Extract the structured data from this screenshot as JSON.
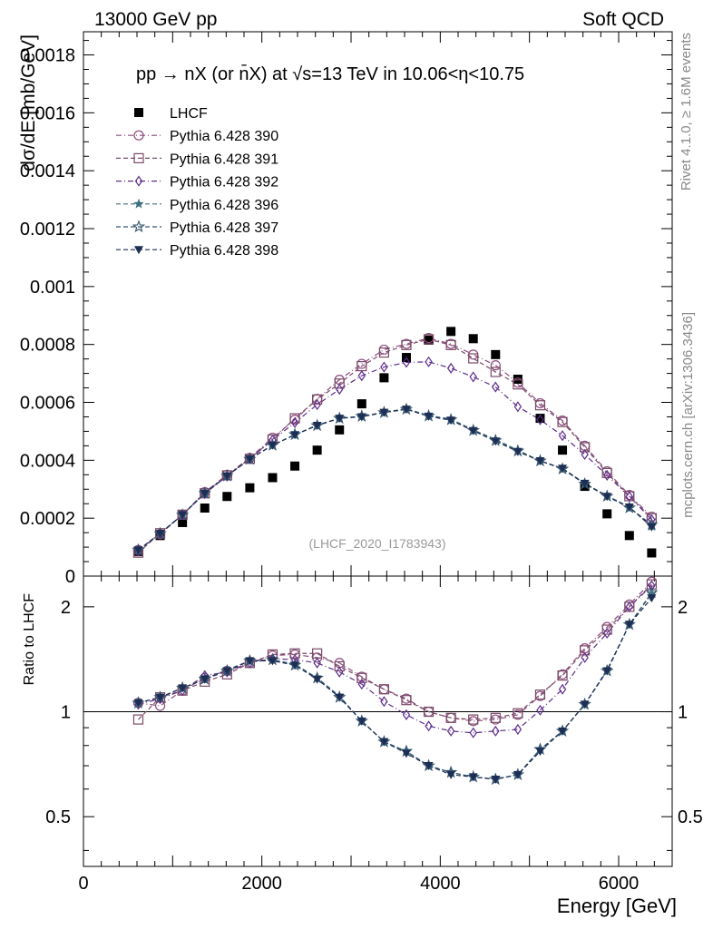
{
  "header": {
    "left": "13000 GeV pp",
    "right": "Soft QCD"
  },
  "side": {
    "rivet": "Rivet 4.1.0, ≥ 1.6M events",
    "mcplots": "mcplots.cern.ch [arXiv:1306.3436]"
  },
  "chart_data": {
    "type": "scatter",
    "title": "pp → nX (or n̄X) at √s=13 TeV in 10.06<η<10.75",
    "ylabel": "dσ/dE [mb/GeV]",
    "ratio_ylabel": "Ratio to LHCF",
    "xlabel": "Energy [GeV]",
    "watermark": "(LHCF_2020_I1783943)",
    "xlim": [
      0,
      6600
    ],
    "ylim": [
      0,
      0.00188
    ],
    "ratio_ylim": [
      0.36,
      2.45
    ],
    "ratio_log": true,
    "x_ticks": [
      0,
      2000,
      4000,
      6000
    ],
    "x_tick_labels": [
      "0",
      "2000",
      "4000",
      "6000"
    ],
    "y_ticks": [
      0,
      0.0002,
      0.0004,
      0.0006,
      0.0008,
      0.001,
      0.0012,
      0.0014,
      0.0016,
      0.0018
    ],
    "y_tick_labels": [
      "0",
      "0.0002",
      "0.0004",
      "0.0006",
      "0.0008",
      "0.001",
      "0.0012",
      "0.0014",
      "0.0016",
      "0.0018"
    ],
    "ratio_ticks": [
      0.5,
      1,
      2
    ],
    "ratio_tick_labels": [
      "0.5",
      "1",
      "2"
    ],
    "x": [
      615,
      860,
      1110,
      1360,
      1610,
      1865,
      2120,
      2370,
      2620,
      2870,
      3120,
      3370,
      3620,
      3870,
      4120,
      4370,
      4620,
      4870,
      5120,
      5370,
      5620,
      5870,
      6120,
      6370
    ],
    "series": [
      {
        "name": "LHCF",
        "color": "#000000",
        "marker": "square-filled",
        "line": "none",
        "values": [
          8.5e-05,
          0.00014,
          0.000185,
          0.000235,
          0.000275,
          0.000305,
          0.00034,
          0.00038,
          0.000435,
          0.000505,
          0.000595,
          0.000685,
          0.000755,
          0.000815,
          0.000845,
          0.00082,
          0.000765,
          0.00068,
          0.000545,
          0.000435,
          0.00031,
          0.000215,
          0.00014,
          8e-05
        ]
      },
      {
        "name": "Pythia 6.428 390",
        "color": "#8b4c7f",
        "marker": "circle-open",
        "line": "dashdot",
        "values": [
          9e-05,
          0.000145,
          0.000212,
          0.00029,
          0.00035,
          0.000408,
          0.000478,
          0.00054,
          0.000612,
          0.000678,
          0.000733,
          0.000782,
          0.000802,
          0.000822,
          0.000802,
          0.000765,
          0.000728,
          0.000668,
          0.000597,
          0.000537,
          0.00045,
          0.000362,
          0.00028,
          0.000205
        ]
      },
      {
        "name": "Pythia 6.428 391",
        "color": "#7a4a66",
        "marker": "square-open",
        "line": "dash",
        "values": [
          8.1e-05,
          0.000148,
          0.000212,
          0.000286,
          0.000348,
          0.000405,
          0.000472,
          0.000545,
          0.00061,
          0.000665,
          0.000725,
          0.000772,
          0.000798,
          0.000818,
          0.000798,
          0.000752,
          0.000705,
          0.000662,
          0.00059,
          0.000532,
          0.000445,
          0.000356,
          0.000276,
          0.0002
        ]
      },
      {
        "name": "Pythia 6.428 392",
        "color": "#5e2e8c",
        "marker": "diamond-open",
        "line": "dashdot",
        "values": [
          8.8e-05,
          0.000147,
          0.000212,
          0.000285,
          0.000345,
          0.000405,
          0.00047,
          0.00053,
          0.000592,
          0.000645,
          0.000692,
          0.000722,
          0.000738,
          0.00074,
          0.000718,
          0.000688,
          0.000653,
          0.000585,
          0.00054,
          0.000485,
          0.00042,
          0.000348,
          0.000275,
          0.000195
        ]
      },
      {
        "name": "Pythia 6.428 396",
        "color": "#3f6f7f",
        "marker": "star-filled",
        "line": "dash",
        "values": [
          9e-05,
          0.000148,
          0.000212,
          0.000288,
          0.000346,
          0.000405,
          0.000452,
          0.000488,
          0.000522,
          0.000545,
          0.000552,
          0.000566,
          0.000578,
          0.000555,
          0.000542,
          0.000505,
          0.000472,
          0.000435,
          0.000398,
          0.000372,
          0.00032,
          0.000278,
          0.000238,
          0.000172
        ]
      },
      {
        "name": "Pythia 6.428 397",
        "color": "#34576f",
        "marker": "star-open",
        "line": "dash",
        "values": [
          9e-05,
          0.000147,
          0.000211,
          0.000286,
          0.000346,
          0.000404,
          0.000452,
          0.000489,
          0.00052,
          0.000545,
          0.000552,
          0.000565,
          0.000576,
          0.000553,
          0.00054,
          0.000503,
          0.000468,
          0.000432,
          0.000398,
          0.00037,
          0.000318,
          0.000276,
          0.000236,
          0.000178
        ]
      },
      {
        "name": "Pythia 6.428 398",
        "color": "#1e2e55",
        "marker": "triangle-down-filled",
        "line": "dash",
        "values": [
          9e-05,
          0.000147,
          0.000212,
          0.000286,
          0.000346,
          0.000405,
          0.000452,
          0.000488,
          0.00052,
          0.000545,
          0.00055,
          0.000565,
          0.000576,
          0.000552,
          0.000538,
          0.000502,
          0.000466,
          0.00043,
          0.000398,
          0.000372,
          0.00032,
          0.000275,
          0.000238,
          0.00017
        ]
      }
    ],
    "ratio_series": [
      {
        "name": "Pythia 6.428 390",
        "values": [
          1.06,
          1.04,
          1.15,
          1.25,
          1.31,
          1.38,
          1.45,
          1.46,
          1.43,
          1.38,
          1.26,
          1.16,
          1.09,
          1.0,
          0.96,
          0.94,
          0.95,
          0.98,
          1.11,
          1.28,
          1.52,
          1.75,
          2.03,
          2.36
        ]
      },
      {
        "name": "Pythia 6.428 391",
        "values": [
          0.95,
          1.1,
          1.15,
          1.22,
          1.28,
          1.38,
          1.46,
          1.47,
          1.47,
          1.35,
          1.25,
          1.16,
          1.08,
          1.0,
          0.96,
          0.95,
          0.96,
          0.99,
          1.12,
          1.27,
          1.5,
          1.72,
          2.0,
          2.32
        ]
      },
      {
        "name": "Pythia 6.428 392",
        "values": [
          1.05,
          1.09,
          1.15,
          1.27,
          1.3,
          1.38,
          1.42,
          1.41,
          1.38,
          1.3,
          1.2,
          1.07,
          0.98,
          0.91,
          0.88,
          0.87,
          0.88,
          0.89,
          1.01,
          1.16,
          1.43,
          1.68,
          2.0,
          2.3
        ]
      },
      {
        "name": "Pythia 6.428 396",
        "values": [
          1.06,
          1.1,
          1.17,
          1.24,
          1.32,
          1.4,
          1.41,
          1.37,
          1.25,
          1.11,
          0.94,
          0.82,
          0.77,
          0.7,
          0.67,
          0.65,
          0.64,
          0.66,
          0.78,
          0.88,
          1.05,
          1.32,
          1.78,
          2.18
        ]
      },
      {
        "name": "Pythia 6.428 397",
        "values": [
          1.06,
          1.1,
          1.17,
          1.24,
          1.31,
          1.4,
          1.41,
          1.36,
          1.25,
          1.1,
          0.94,
          0.82,
          0.77,
          0.7,
          0.67,
          0.65,
          0.64,
          0.66,
          0.78,
          0.88,
          1.05,
          1.31,
          1.78,
          2.2
        ]
      },
      {
        "name": "Pythia 6.428 398",
        "values": [
          1.06,
          1.1,
          1.17,
          1.24,
          1.31,
          1.4,
          1.4,
          1.36,
          1.24,
          1.1,
          0.94,
          0.82,
          0.76,
          0.7,
          0.66,
          0.65,
          0.64,
          0.66,
          0.77,
          0.88,
          1.05,
          1.31,
          1.78,
          2.12
        ]
      }
    ]
  }
}
